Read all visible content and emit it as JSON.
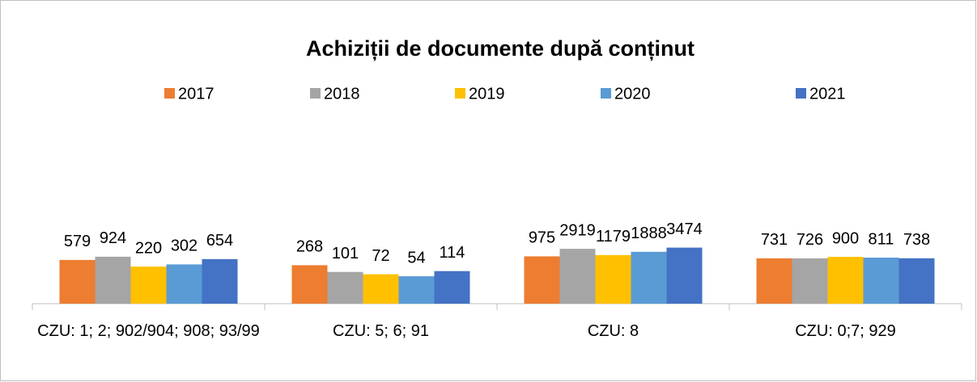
{
  "chart_data": {
    "type": "bar",
    "title": "Achiziții de documente după conținut",
    "categories": [
      "CZU: 1; 2; 902/904; 908; 93/99",
      "CZU: 5; 6; 91",
      "CZU: 8",
      "CZU: 0;7; 929"
    ],
    "series": [
      {
        "name": "2017",
        "color": "#ed7d31",
        "values": [
          579,
          268,
          975,
          731
        ]
      },
      {
        "name": "2018",
        "color": "#a5a5a5",
        "values": [
          924,
          101,
          2919,
          726
        ]
      },
      {
        "name": "2019",
        "color": "#ffc000",
        "values": [
          220,
          72,
          1179,
          900
        ]
      },
      {
        "name": "2020",
        "color": "#5b9bd5",
        "values": [
          302,
          54,
          1888,
          811
        ]
      },
      {
        "name": "2021",
        "color": "#4472c4",
        "values": [
          654,
          114,
          3474,
          738
        ]
      }
    ],
    "ylim": [
      1,
      10000000000
    ],
    "log_scale": true,
    "grid": false,
    "legend": "top"
  }
}
